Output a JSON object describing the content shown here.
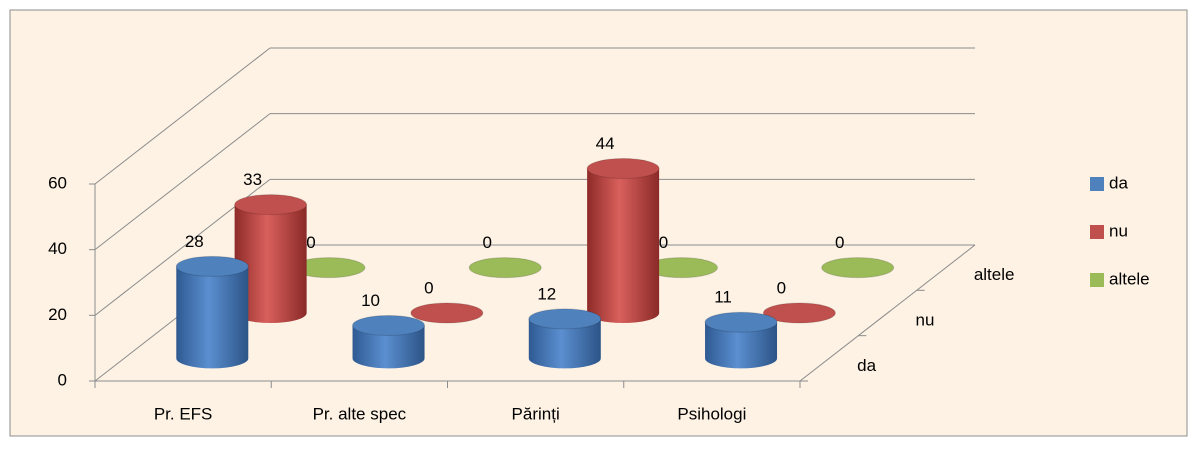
{
  "chart_data": {
    "type": "bar3d",
    "categories": [
      "Pr. EFS",
      "Pr. alte spec",
      "Părinți",
      "Psihologi"
    ],
    "series": [
      {
        "name": "da",
        "color": "#4f81bd",
        "values": [
          28,
          10,
          12,
          11
        ]
      },
      {
        "name": "nu",
        "color": "#c0504d",
        "values": [
          33,
          0,
          44,
          0
        ]
      },
      {
        "name": "altele",
        "color": "#9bbb59",
        "values": [
          0,
          0,
          0,
          0
        ]
      }
    ],
    "ylim": [
      0,
      60
    ],
    "yticks": [
      0,
      20,
      40,
      60
    ],
    "grid": true,
    "legend": "right"
  }
}
